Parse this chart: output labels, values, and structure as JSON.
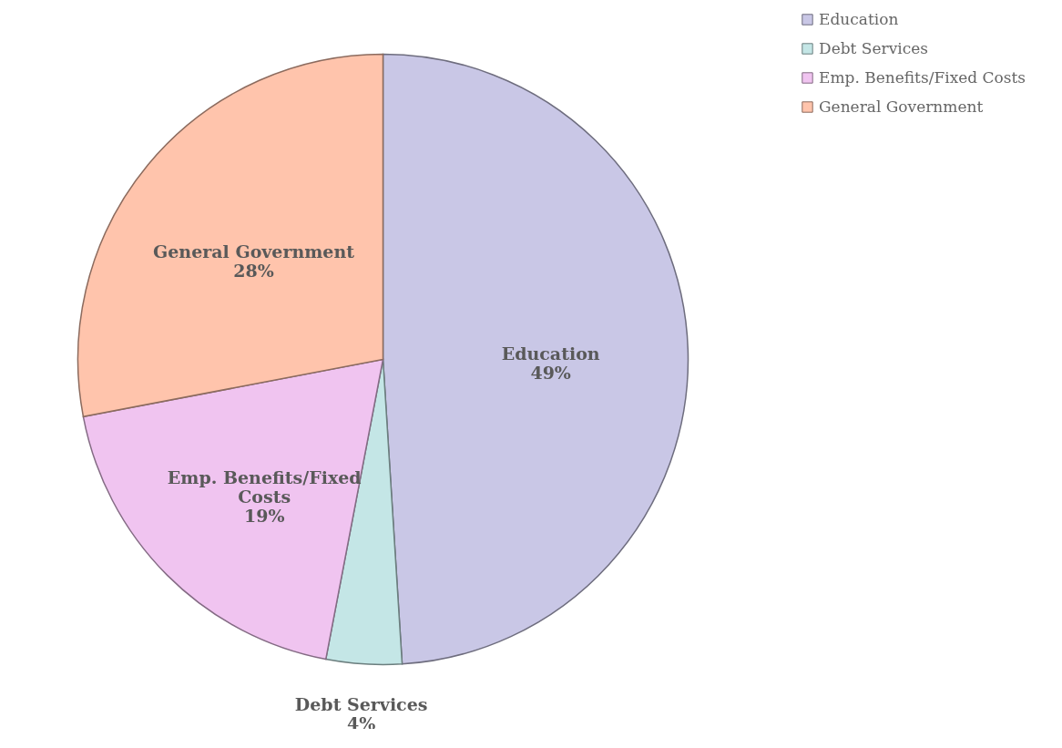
{
  "chart_data": {
    "type": "pie",
    "categories": [
      "Education",
      "Debt Services",
      "Emp. Benefits/Fixed Costs",
      "General Government"
    ],
    "values": [
      49,
      4,
      19,
      28
    ],
    "value_labels": [
      "49%",
      "4%",
      "19%",
      "28%"
    ],
    "colors": [
      "#c9c7e6",
      "#c4e6e6",
      "#f0c4f0",
      "#ffc4ac"
    ],
    "legend": "right"
  }
}
